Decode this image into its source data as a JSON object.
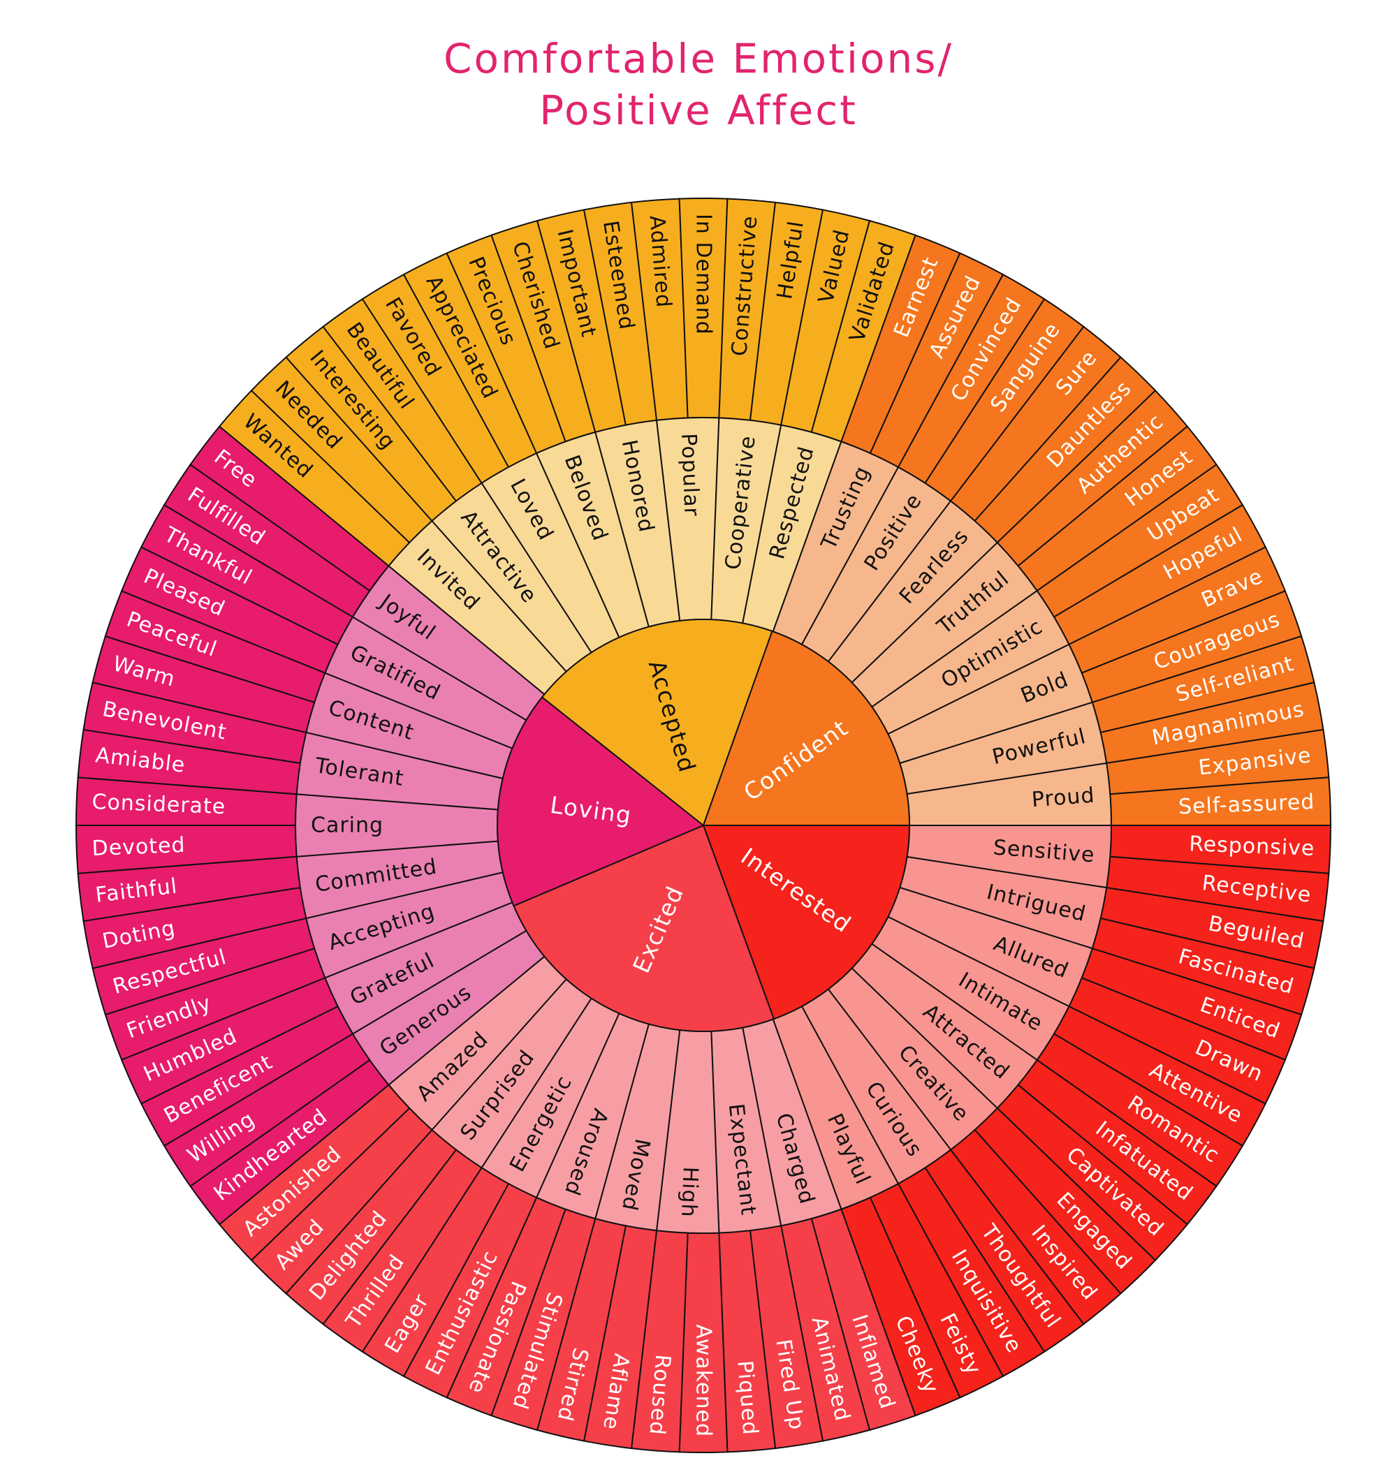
{
  "title": {
    "line1": "Comfortable Emotions/",
    "line2": "Positive Affect"
  },
  "groups": [
    {
      "name": "Interested",
      "colors": {
        "inner": "#f5231b",
        "middle": "#f89590",
        "outer": "#f5231b",
        "inner_text": "#ffffff",
        "middle_text": "#111111",
        "outer_text": "#ffffff"
      },
      "middle": [
        "Sensitive",
        "Intrigued",
        "Allured",
        "Intimate",
        "Attracted",
        "Creative",
        "Curious",
        "Playful"
      ],
      "outer": [
        "Responsive",
        "Receptive",
        "Beguiled",
        "Fascinated",
        "Enticed",
        "Drawn",
        "Attentive",
        "Romantic",
        "Infatuated",
        "Captivated",
        "Engaged",
        "Inspired",
        "Thoughtful",
        "Inquisitive",
        "Feisty",
        "Cheeky"
      ]
    },
    {
      "name": "Excited",
      "colors": {
        "inner": "#f5404a",
        "middle": "#f79ea4",
        "outer": "#f5404a",
        "inner_text": "#ffffff",
        "middle_text": "#111111",
        "outer_text": "#ffffff"
      },
      "middle": [
        "Charged",
        "Expectant",
        "High",
        "Moved",
        "Aroused",
        "Energetic",
        "Surprised",
        "Amazed"
      ],
      "outer": [
        "Inflamed",
        "Animated",
        "Fired Up",
        "Piqued",
        "Awakened",
        "Roused",
        "Aflame",
        "Stirred",
        "Stimulated",
        "Passionate",
        "Enthusiastic",
        "Eager",
        "Thrilled",
        "Delighted",
        "Awed",
        "Astonished"
      ]
    },
    {
      "name": "Loving",
      "colors": {
        "inner": "#e81c6d",
        "middle": "#ea80b1",
        "outer": "#e81c6d",
        "inner_text": "#ffffff",
        "middle_text": "#111111",
        "outer_text": "#ffffff"
      },
      "middle": [
        "Generous",
        "Grateful",
        "Accepting",
        "Committed",
        "Caring",
        "Tolerant",
        "Content",
        "Gratified",
        "Joyful"
      ],
      "outer": [
        "Kindhearted",
        "Willing",
        "Beneficent",
        "Humbled",
        "Friendly",
        "Respectful",
        "Doting",
        "Faithful",
        "Devoted",
        "Considerate",
        "Amiable",
        "Benevolent",
        "Warm",
        "Peaceful",
        "Pleased",
        "Thankful",
        "Fulfilled",
        "Free"
      ]
    },
    {
      "name": "Accepted",
      "colors": {
        "inner": "#f7ae1e",
        "middle": "#f9d996",
        "outer": "#f7ae1e",
        "inner_text": "#111111",
        "middle_text": "#111111",
        "outer_text": "#111111"
      },
      "middle": [
        "Invited",
        "Attractive",
        "Loved",
        "Beloved",
        "Honored",
        "Popular",
        "Cooperative",
        "Respected"
      ],
      "outer": [
        "Wanted",
        "Needed",
        "Interesting",
        "Beautiful",
        "Favored",
        "Appreciated",
        "Precious",
        "Cherished",
        "Important",
        "Esteemed",
        "Admired",
        "In Demand",
        "Constructive",
        "Helpful",
        "Valued",
        "Validated"
      ]
    },
    {
      "name": "Confident",
      "colors": {
        "inner": "#f5761e",
        "middle": "#f7b78c",
        "outer": "#f5761e",
        "inner_text": "#ffffff",
        "middle_text": "#111111",
        "outer_text": "#ffffff"
      },
      "middle": [
        "Trusting",
        "Positive",
        "Fearless",
        "Truthful",
        "Optimistic",
        "Bold",
        "Powerful",
        "Proud"
      ],
      "outer": [
        "Earnest",
        "Assured",
        "Convinced",
        "Sanguine",
        "Sure",
        "Dauntless",
        "Authentic",
        "Honest",
        "Upbeat",
        "Hopeful",
        "Brave",
        "Courageous",
        "Self-reliant",
        "Magnanimous",
        "Expansive",
        "Self-assured"
      ]
    }
  ]
}
